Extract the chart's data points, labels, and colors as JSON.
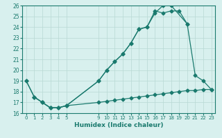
{
  "xlabel": "Humidex (Indice chaleur)",
  "line1_x": [
    0,
    1,
    2,
    3,
    4,
    5,
    9,
    10,
    11,
    12,
    13,
    14,
    15,
    16,
    17,
    18,
    20,
    21,
    22,
    23
  ],
  "line1_y": [
    19,
    17.5,
    17,
    16.5,
    16.5,
    16.7,
    19.0,
    20.0,
    20.8,
    21.5,
    22.5,
    23.8,
    24.0,
    25.3,
    26.0,
    26.0,
    24.3,
    19.5,
    19.0,
    18.2
  ],
  "line2_x": [
    0,
    1,
    2,
    3,
    4,
    5,
    9,
    10,
    11,
    12,
    13,
    14,
    15,
    16,
    17,
    18,
    19,
    20
  ],
  "line2_y": [
    19,
    17.5,
    17,
    16.5,
    16.5,
    16.7,
    19.0,
    20.0,
    20.8,
    21.5,
    22.5,
    23.8,
    24.0,
    25.5,
    25.3,
    25.5,
    25.5,
    24.3
  ],
  "line3_x": [
    1,
    2,
    3,
    4,
    5,
    9,
    10,
    11,
    12,
    13,
    14,
    15,
    16,
    17,
    18,
    19,
    20,
    21,
    22,
    23
  ],
  "line3_y": [
    17.5,
    17,
    16.5,
    16.5,
    16.7,
    17.0,
    17.1,
    17.2,
    17.3,
    17.4,
    17.5,
    17.6,
    17.7,
    17.8,
    17.9,
    18.0,
    18.1,
    18.1,
    18.2,
    18.2
  ],
  "line_color": "#1a7a6e",
  "bg_color": "#d8f0ee",
  "grid_color": "#b8d8d4",
  "xlim": [
    -0.5,
    23.5
  ],
  "ylim": [
    16,
    26
  ],
  "yticks": [
    16,
    17,
    18,
    19,
    20,
    21,
    22,
    23,
    24,
    25,
    26
  ],
  "xticks": [
    0,
    1,
    2,
    3,
    4,
    5,
    9,
    10,
    11,
    12,
    13,
    14,
    15,
    16,
    17,
    18,
    19,
    20,
    21,
    22,
    23
  ]
}
